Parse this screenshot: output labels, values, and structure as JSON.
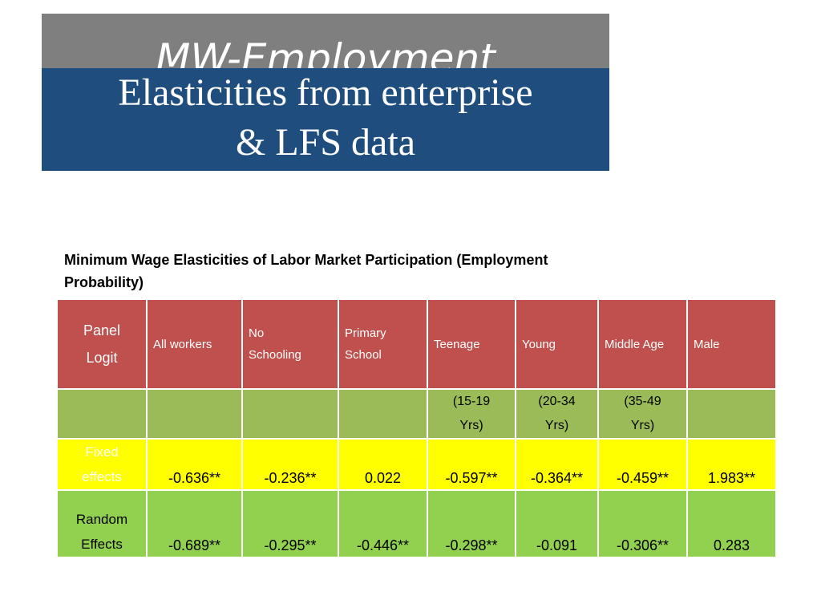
{
  "slide": {
    "title_top": "MW-Employment",
    "title_line1": "Elasticities from enterprise",
    "title_line2": "& LFS data"
  },
  "table": {
    "caption_line1": "Minimum Wage Elasticities of Labor Market Participation (Employment",
    "caption_line2": "Probability)",
    "stub_header_line1": "Panel",
    "stub_header_line2": "Logit",
    "columns": [
      {
        "line1": "All workers",
        "line2": ""
      },
      {
        "line1": "No",
        "line2": "Schooling"
      },
      {
        "line1": "Primary",
        "line2": "School"
      },
      {
        "line1": "Teenage",
        "line2": ""
      },
      {
        "line1": "Young",
        "line2": ""
      },
      {
        "line1": "Middle Age",
        "line2": ""
      },
      {
        "line1": "Male",
        "line2": ""
      }
    ],
    "age_ranges": [
      {
        "line1": "",
        "line2": ""
      },
      {
        "line1": "",
        "line2": ""
      },
      {
        "line1": "",
        "line2": ""
      },
      {
        "line1": "(15-19",
        "line2": "Yrs)"
      },
      {
        "line1": "(20-34",
        "line2": "Yrs)"
      },
      {
        "line1": "(35-49",
        "line2": "Yrs)"
      },
      {
        "line1": "",
        "line2": ""
      }
    ],
    "rows": [
      {
        "label_line1": "Fixed",
        "label_line2": "effects",
        "values": [
          "-0.636**",
          "-0.236**",
          "0.022",
          "-0.597**",
          "-0.364**",
          "-0.459**",
          "1.983**"
        ]
      },
      {
        "label_line1": "Random",
        "label_line2": "Effects",
        "values": [
          "-0.689**",
          "-0.295**",
          "-0.446**",
          "-0.298**",
          "-0.091",
          "-0.306**",
          "0.283"
        ]
      }
    ]
  },
  "colors": {
    "title_gray": "#7f7f7f",
    "title_blue": "#1f4e7e",
    "header_red": "#c0504d",
    "age_row_olive": "#9bbb59",
    "fixed_row_yellow": "#ffff00",
    "random_row_green": "#92d050"
  }
}
